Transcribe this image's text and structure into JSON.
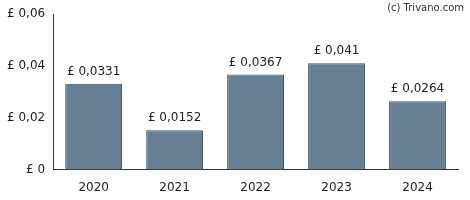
{
  "chart_data": {
    "type": "bar",
    "annotation": "(c) Trivano.com",
    "categories": [
      "2020",
      "2021",
      "2022",
      "2023",
      "2024"
    ],
    "values": [
      0.0331,
      0.0152,
      0.0367,
      0.041,
      0.0264
    ],
    "value_labels": [
      "£ 0,0331",
      "£ 0,0152",
      "£ 0,0367",
      "£ 0,041",
      "£ 0,0264"
    ],
    "data_labels": true,
    "color": "#667f93",
    "ylim": [
      0,
      0.06
    ],
    "yticks": [
      {
        "value": 0,
        "label": "£ 0"
      },
      {
        "value": 0.02,
        "label": "£ 0,02"
      },
      {
        "value": 0.04,
        "label": "£ 0,04"
      },
      {
        "value": 0.06,
        "label": "£ 0,06"
      }
    ],
    "grid": false
  }
}
